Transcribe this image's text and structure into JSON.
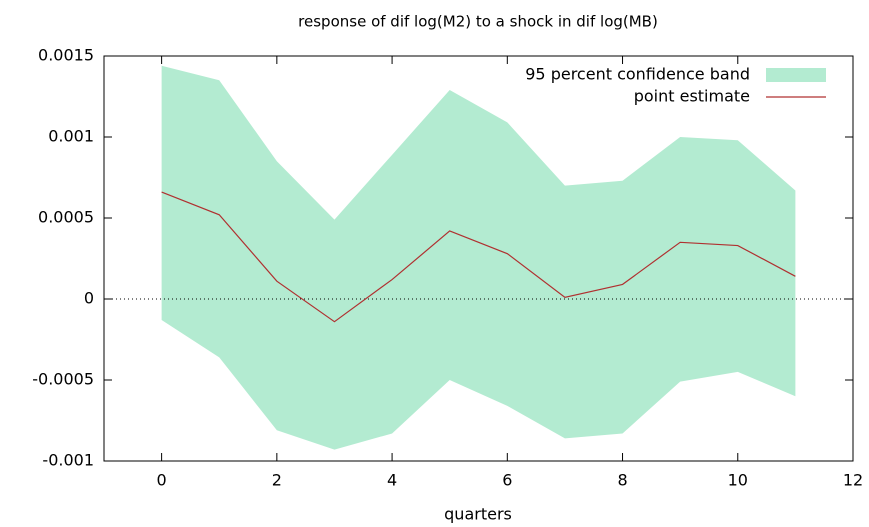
{
  "chart_data": {
    "type": "band-line",
    "title": "response of dif log(M2) to a shock in dif log(MB)",
    "x_label": "quarters",
    "x": [
      0,
      1,
      2,
      3,
      4,
      5,
      6,
      7,
      8,
      9,
      10,
      11
    ],
    "series": [
      {
        "name": "95 percent confidence band",
        "color": "#b3ebd1",
        "upper": [
          0.00144,
          0.00135,
          0.00085,
          0.00049,
          0.00089,
          0.00129,
          0.00109,
          0.0007,
          0.00073,
          0.001,
          0.00098,
          0.00067
        ],
        "lower": [
          -0.00013,
          -0.00036,
          -0.00081,
          -0.00093,
          -0.00083,
          -0.0005,
          -0.00066,
          -0.00086,
          -0.00083,
          -0.00051,
          -0.00045,
          -0.0006
        ]
      },
      {
        "name": "point estimate",
        "color": "#b03030",
        "values": [
          0.00066,
          0.00052,
          0.00011,
          -0.00014,
          0.00012,
          0.00042,
          0.00028,
          1e-05,
          9e-05,
          0.00035,
          0.00033,
          0.00014
        ]
      }
    ],
    "xlim": [
      -1,
      12
    ],
    "xticks": [
      0,
      2,
      4,
      6,
      8,
      10,
      12
    ],
    "ylim": [
      -0.001,
      0.0015
    ],
    "yticks": [
      -0.001,
      -0.0005,
      0,
      0.0005,
      0.001,
      0.0015
    ],
    "zero_line": true,
    "legend": "top-right"
  }
}
